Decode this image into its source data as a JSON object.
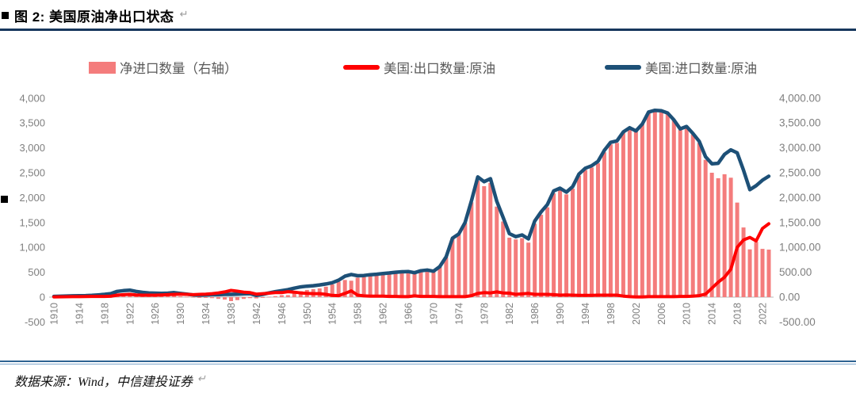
{
  "header": {
    "bullet": "■",
    "title": "图 2: 美国原油净出口状态",
    "return_mark": "↵"
  },
  "legend": {
    "items": [
      {
        "label": "净进口数量（右轴）",
        "type": "bar",
        "color": "#F47C7C"
      },
      {
        "label": "美国:出口数量:原油",
        "type": "line",
        "color": "#FF0000"
      },
      {
        "label": "美国:进口数量:原油",
        "type": "line",
        "color": "#1D5077"
      }
    ]
  },
  "footer": {
    "source_text": "数据来源：Wind，中信建投证券",
    "return_mark": "↵"
  },
  "chart_data": {
    "type": "combo",
    "title": "美国原油净出口状态",
    "grid": "off",
    "legend_position": "top",
    "x_years": {
      "start": 1910,
      "end": 2023,
      "step": 1
    },
    "x_tick_labels": [
      "1910",
      "1914",
      "1918",
      "1922",
      "1926",
      "1930",
      "1934",
      "1938",
      "1942",
      "1946",
      "1950",
      "1954",
      "1958",
      "1962",
      "1966",
      "1970",
      "1974",
      "1978",
      "1982",
      "1986",
      "1990",
      "1994",
      "1998",
      "2002",
      "2006",
      "2010",
      "2014",
      "2018",
      "2022"
    ],
    "left_axis": {
      "min": -500,
      "max": 4000,
      "ticks": [
        "4,000",
        "3,500",
        "3,000",
        "2,500",
        "2,000",
        "1,500",
        "1,000",
        "500",
        "0",
        "-500"
      ]
    },
    "right_axis": {
      "min": -500,
      "max": 4000,
      "ticks": [
        "4,000.00",
        "3,500.00",
        "3,000.00",
        "2,500.00",
        "2,000.00",
        "1,500.00",
        "1,000.00",
        "500.00",
        "0.00",
        "-500.00"
      ]
    },
    "series": [
      {
        "name": "净进口数量（右轴）",
        "type": "bar",
        "axis": "right",
        "color": "#F47C7C",
        "values": [
          10,
          12,
          14,
          15,
          18,
          18,
          20,
          30,
          40,
          52,
          75,
          80,
          85,
          70,
          55,
          45,
          40,
          30,
          30,
          35,
          15,
          5,
          -5,
          -15,
          -15,
          -20,
          -35,
          -50,
          -80,
          -60,
          -35,
          -20,
          -25,
          -15,
          5,
          20,
          40,
          40,
          80,
          120,
          145,
          160,
          175,
          210,
          255,
          310,
          345,
          330,
          390,
          410,
          430,
          440,
          455,
          470,
          485,
          500,
          505,
          465,
          515,
          530,
          505,
          605,
          800,
          1175,
          1260,
          1490,
          1905,
          2340,
          2230,
          2295,
          1820,
          1520,
          1195,
          1160,
          1185,
          1095,
          1475,
          1655,
          1805,
          2085,
          2150,
          2065,
          2180,
          2440,
          2555,
          2605,
          2690,
          2910,
          3070,
          3100,
          3300,
          3395,
          3335,
          3475,
          3710,
          3745,
          3735,
          3690,
          3550,
          3365,
          3415,
          3270,
          3100,
          2760,
          2500,
          2390,
          2470,
          2400,
          1900,
          1400,
          960,
          1110,
          970,
          955
        ]
      },
      {
        "name": "美国:出口数量:原油",
        "type": "line",
        "axis": "left",
        "color": "#FF0000",
        "values": [
          5,
          6,
          8,
          10,
          10,
          12,
          15,
          15,
          15,
          18,
          40,
          50,
          55,
          45,
          40,
          40,
          40,
          45,
          50,
          55,
          60,
          55,
          50,
          55,
          60,
          70,
          85,
          105,
          135,
          120,
          100,
          90,
          60,
          70,
          80,
          90,
          90,
          110,
          100,
          85,
          75,
          70,
          70,
          55,
          35,
          30,
          75,
          125,
          40,
          25,
          20,
          20,
          20,
          15,
          15,
          10,
          10,
          25,
          15,
          15,
          15,
          10,
          10,
          10,
          10,
          10,
          30,
          75,
          90,
          85,
          105,
          85,
          80,
          55,
          65,
          75,
          55,
          55,
          55,
          50,
          40,
          45,
          40,
          35,
          35,
          35,
          40,
          40,
          40,
          40,
          20,
          10,
          5,
          5,
          10,
          10,
          10,
          10,
          10,
          15,
          15,
          20,
          30,
          60,
          180,
          300,
          400,
          560,
          1000,
          1150,
          1200,
          1130,
          1380,
          1475
        ]
      },
      {
        "name": "美国:进口数量:原油",
        "type": "line",
        "axis": "left",
        "color": "#1D5077",
        "values": [
          15,
          18,
          22,
          25,
          28,
          30,
          35,
          45,
          55,
          70,
          115,
          130,
          140,
          115,
          95,
          85,
          80,
          75,
          80,
          90,
          75,
          60,
          45,
          40,
          45,
          50,
          50,
          55,
          55,
          60,
          65,
          70,
          35,
          55,
          85,
          110,
          130,
          150,
          180,
          205,
          220,
          230,
          245,
          265,
          290,
          340,
          420,
          455,
          430,
          435,
          450,
          460,
          475,
          485,
          500,
          510,
          515,
          490,
          530,
          545,
          520,
          615,
          810,
          1185,
          1270,
          1500,
          1935,
          2415,
          2320,
          2380,
          1925,
          1605,
          1275,
          1215,
          1250,
          1170,
          1530,
          1710,
          1860,
          2135,
          2190,
          2110,
          2220,
          2475,
          2590,
          2640,
          2730,
          2950,
          3110,
          3140,
          3320,
          3405,
          3340,
          3480,
          3720,
          3755,
          3745,
          3700,
          3560,
          3380,
          3430,
          3290,
          3130,
          2820,
          2680,
          2690,
          2870,
          2960,
          2900,
          2550,
          2160,
          2240,
          2350,
          2430
        ]
      }
    ]
  }
}
